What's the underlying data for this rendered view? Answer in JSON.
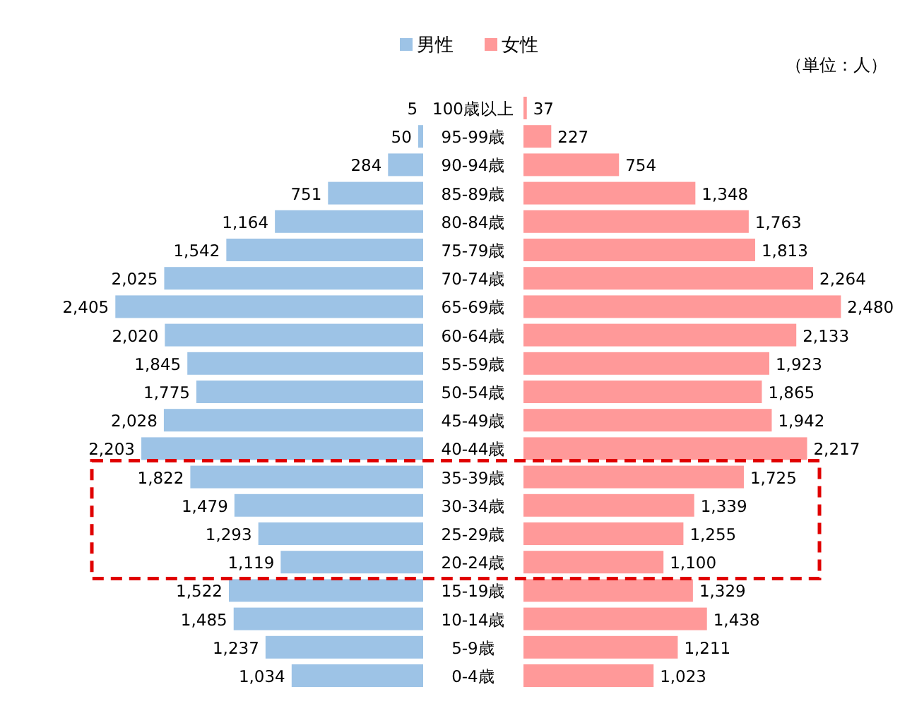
{
  "chart_data": [
    {
      "type": "bar",
      "orientation": "horizontal",
      "categories": [
        "100歳以上",
        "95-99歳",
        "90-94歳",
        "85-89歳",
        "80-84歳",
        "75-79歳",
        "70-74歳",
        "65-69歳",
        "60-64歳",
        "55-59歳",
        "50-54歳",
        "45-49歳",
        "40-44歳",
        "35-39歳",
        "30-34歳",
        "25-29歳",
        "20-24歳",
        "15-19歳",
        "10-14歳",
        "5-9歳",
        "0-4歳"
      ],
      "series": [
        {
          "name": "男性",
          "color": "#9dc3e6",
          "values": [
            5,
            50,
            284,
            751,
            1164,
            1542,
            2025,
            2405,
            2020,
            1845,
            1775,
            2028,
            2203,
            1822,
            1479,
            1293,
            1119,
            1522,
            1485,
            1237,
            1034
          ],
          "value_labels": [
            "5",
            "50",
            "284",
            "751",
            "1,164",
            "1,542",
            "2,025",
            "2,405",
            "2,020",
            "1,845",
            "1,775",
            "2,028",
            "2,203",
            "1,822",
            "1,479",
            "1,293",
            "1,119",
            "1,522",
            "1,485",
            "1,237",
            "1,034"
          ]
        }
      ],
      "legend": "top"
    },
    {
      "type": "bar",
      "orientation": "horizontal",
      "categories": [
        null,
        null,
        null,
        null,
        null,
        null,
        null,
        null,
        null,
        null,
        null,
        null,
        null,
        null,
        null,
        null,
        null,
        null,
        null,
        null,
        null
      ],
      "series": [
        {
          "name": "女性",
          "color": "#ff9999",
          "values": [
            37,
            227,
            754,
            1348,
            1763,
            1813,
            2264,
            2480,
            2133,
            1923,
            1865,
            1942,
            2217,
            1725,
            1339,
            1255,
            1100,
            1329,
            1438,
            1211,
            1023
          ],
          "value_labels": [
            "37",
            "227",
            "754",
            "1,348",
            "1,763",
            "1,813",
            "2,264",
            "2,480",
            "2,133",
            "1,923",
            "1,865",
            "1,942",
            "2,217",
            "1,725",
            "1,339",
            "1,255",
            "1,100",
            "1,329",
            "1,438",
            "1,211",
            "1,023"
          ]
        }
      ],
      "legend": "top",
      "annotations": [
        "（単位：人）"
      ]
    }
  ]
}
